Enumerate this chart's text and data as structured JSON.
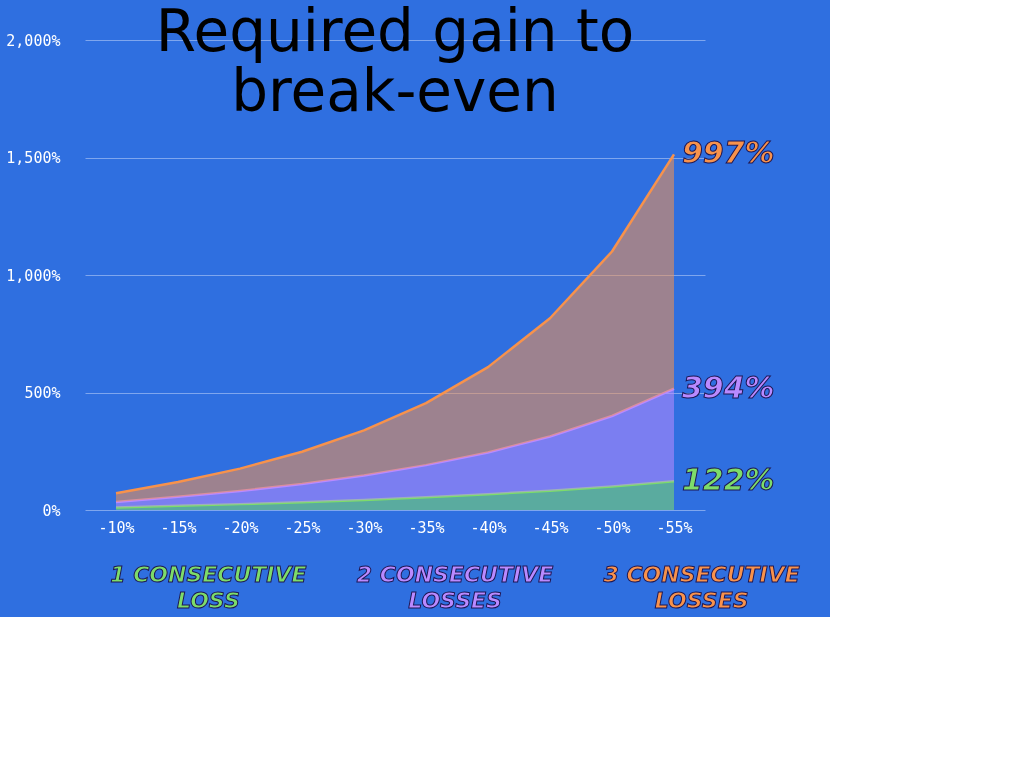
{
  "chart_data": {
    "type": "area",
    "title": "Required gain to break-even",
    "stacked": true,
    "categories": [
      "-10%",
      "-15%",
      "-20%",
      "-25%",
      "-30%",
      "-35%",
      "-40%",
      "-45%",
      "-50%",
      "-55%"
    ],
    "series": [
      {
        "name": "1 CONSECUTIVE LOSS",
        "color": "#7ddc6a",
        "values": [
          11,
          18,
          25,
          33,
          43,
          54,
          67,
          82,
          100,
          122
        ],
        "value_labels": [
          null,
          null,
          null,
          null,
          null,
          null,
          null,
          null,
          null,
          "122%"
        ]
      },
      {
        "name": "2 CONSECUTIVE LOSSES",
        "color": "#b98aff",
        "values": [
          23,
          38,
          56,
          78,
          104,
          137,
          178,
          231,
          300,
          394
        ],
        "value_labels": [
          null,
          null,
          null,
          null,
          null,
          null,
          null,
          null,
          null,
          "394%"
        ]
      },
      {
        "name": "3 CONSECUTIVE LOSSES",
        "color": "#f7924c",
        "values": [
          37,
          63,
          95,
          137,
          192,
          264,
          363,
          503,
          700,
          997
        ],
        "value_labels": [
          null,
          null,
          null,
          null,
          null,
          null,
          null,
          null,
          null,
          "997%"
        ]
      }
    ],
    "ylim": [
      0,
      2000
    ],
    "yticks": [
      {
        "value": 0,
        "label": "0%"
      },
      {
        "value": 500,
        "label": "500%"
      },
      {
        "value": 1000,
        "label": "1,000%"
      },
      {
        "value": 1500,
        "label": "1,500%"
      },
      {
        "value": 2000,
        "label": "2,000%"
      }
    ],
    "grid": "y",
    "legend": "bottom"
  }
}
